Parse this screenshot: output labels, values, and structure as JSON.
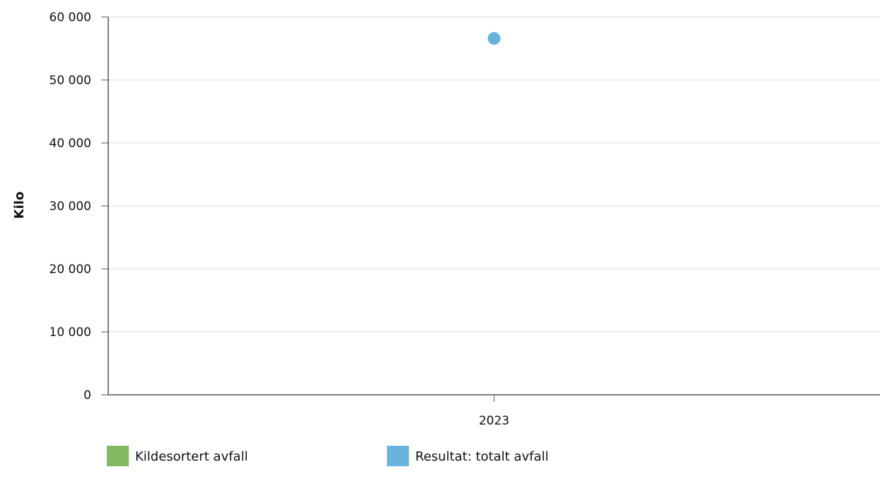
{
  "chart_data": {
    "type": "scatter",
    "title": "",
    "xlabel": "",
    "ylabel": "Kilo",
    "categories": [
      "2023"
    ],
    "ylim": [
      0,
      60000
    ],
    "yticks": [
      0,
      10000,
      20000,
      30000,
      40000,
      50000,
      60000
    ],
    "ytick_labels": [
      "0",
      "10 000",
      "20 000",
      "30 000",
      "40 000",
      "50 000",
      "60 000"
    ],
    "grid": true,
    "legend_position": "bottom",
    "series": [
      {
        "name": "Kildesortert avfall",
        "color": "#82b860",
        "values": [
          null
        ]
      },
      {
        "name": "Resultat: totalt avfall",
        "color": "#68b4dc",
        "values": [
          56600
        ]
      }
    ]
  }
}
